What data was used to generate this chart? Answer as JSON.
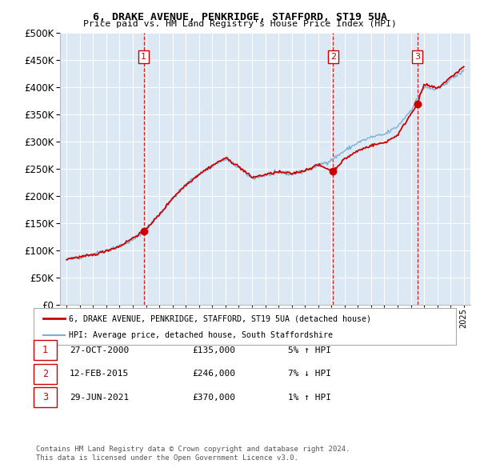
{
  "title1": "6, DRAKE AVENUE, PENKRIDGE, STAFFORD, ST19 5UA",
  "title2": "Price paid vs. HM Land Registry's House Price Index (HPI)",
  "legend_line1": "6, DRAKE AVENUE, PENKRIDGE, STAFFORD, ST19 5UA (detached house)",
  "legend_line2": "HPI: Average price, detached house, South Staffordshire",
  "price_color": "#cc0000",
  "hpi_color": "#7ab0d4",
  "background_color": "#dce9f5",
  "transactions": [
    {
      "label": "1",
      "date": "27-OCT-2000",
      "x": 2000.82,
      "price": 135000,
      "pct": "5%",
      "arrow": "↑"
    },
    {
      "label": "2",
      "date": "12-FEB-2015",
      "x": 2015.12,
      "price": 246000,
      "pct": "7%",
      "arrow": "↓"
    },
    {
      "label": "3",
      "date": "29-JUN-2021",
      "x": 2021.49,
      "price": 370000,
      "pct": "1%",
      "arrow": "↑"
    }
  ],
  "footer1": "Contains HM Land Registry data © Crown copyright and database right 2024.",
  "footer2": "This data is licensed under the Open Government Licence v3.0.",
  "ylim": [
    0,
    500000
  ],
  "xlim": [
    1994.5,
    2025.5
  ],
  "yticks": [
    0,
    50000,
    100000,
    150000,
    200000,
    250000,
    300000,
    350000,
    400000,
    450000,
    500000
  ],
  "hpi_anchors_x": [
    1995,
    1996,
    1997,
    1998,
    1999,
    2000,
    2001,
    2002,
    2003,
    2004,
    2005,
    2006,
    2007,
    2008,
    2009,
    2010,
    2011,
    2012,
    2013,
    2014,
    2015,
    2016,
    2017,
    2018,
    2019,
    2020,
    2021,
    2022,
    2023,
    2024,
    2025
  ],
  "hpi_anchors_y": [
    82000,
    87000,
    93000,
    100000,
    108000,
    118000,
    140000,
    165000,
    195000,
    220000,
    240000,
    255000,
    268000,
    252000,
    232000,
    238000,
    243000,
    240000,
    246000,
    256000,
    266000,
    283000,
    298000,
    308000,
    313000,
    328000,
    358000,
    400000,
    395000,
    415000,
    430000
  ],
  "price_anchors_x": [
    1995,
    1997,
    1999,
    2000.82,
    2002,
    2003,
    2004,
    2005,
    2006,
    2007,
    2008,
    2009,
    2010,
    2011,
    2012,
    2013,
    2014,
    2015.12,
    2016,
    2017,
    2018,
    2019,
    2020,
    2021.49,
    2022,
    2023,
    2024,
    2025
  ],
  "price_anchors_y": [
    84000,
    91000,
    107000,
    135000,
    165000,
    196000,
    220000,
    240000,
    256000,
    270000,
    254000,
    234000,
    239000,
    244000,
    241000,
    247000,
    257000,
    246000,
    268000,
    283000,
    293000,
    298000,
    312000,
    370000,
    405000,
    398000,
    418000,
    438000
  ]
}
